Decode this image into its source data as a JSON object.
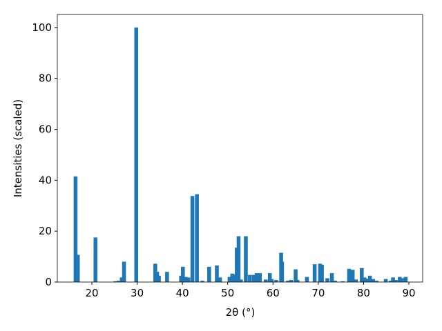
{
  "chart_data": {
    "type": "bar",
    "xlabel": "2θ (°)",
    "ylabel": "Intensities (scaled)",
    "x": [
      16.4,
      16.9,
      20.8,
      25.2,
      25.9,
      26.6,
      27.1,
      29.8,
      34.0,
      34.4,
      34.8,
      36.6,
      39.7,
      40.1,
      40.7,
      41.3,
      42.2,
      43.2,
      44.4,
      45.9,
      47.6,
      48.3,
      50.4,
      51.0,
      51.4,
      52.0,
      52.4,
      52.9,
      54.0,
      54.9,
      55.8,
      56.4,
      57.1,
      58.4,
      59.3,
      59.7,
      60.7,
      61.8,
      62.0,
      63.3,
      64.0,
      65.0,
      65.4,
      67.5,
      69.2,
      70.4,
      70.8,
      72.0,
      73.0,
      73.7,
      75.4,
      76.8,
      77.6,
      78.3,
      79.6,
      80.2,
      80.8,
      81.4,
      82.1,
      82.9,
      84.9,
      86.0,
      86.5,
      87.1,
      88.0,
      88.5,
      89.3
    ],
    "values": [
      41.5,
      10.7,
      17.5,
      0.3,
      0.5,
      1.8,
      8,
      100,
      7.2,
      4,
      2.5,
      4,
      2.5,
      6,
      2,
      1.8,
      33.8,
      34.5,
      0.5,
      6,
      6.5,
      1.8,
      2,
      3.3,
      3,
      13.5,
      18,
      1,
      18,
      2.8,
      2.8,
      3.5,
      3.5,
      1,
      3.5,
      1.2,
      0.8,
      11.5,
      8,
      0.5,
      0.8,
      5,
      0.8,
      2,
      7,
      7.2,
      6.8,
      1.5,
      3.5,
      0.5,
      0.3,
      5.2,
      4.8,
      1,
      5.5,
      1.8,
      1.3,
      2.5,
      1.2,
      0.5,
      1.2,
      0.5,
      1.8,
      0.8,
      2,
      1.5,
      2
    ],
    "color": "#1f77b4",
    "xlim": [
      12.37,
      93.05
    ],
    "xticks": [
      20,
      30,
      40,
      50,
      60,
      70,
      80,
      90
    ],
    "ylim": [
      0,
      105.1
    ],
    "yticks": [
      0,
      20,
      40,
      60,
      80,
      100
    ]
  }
}
